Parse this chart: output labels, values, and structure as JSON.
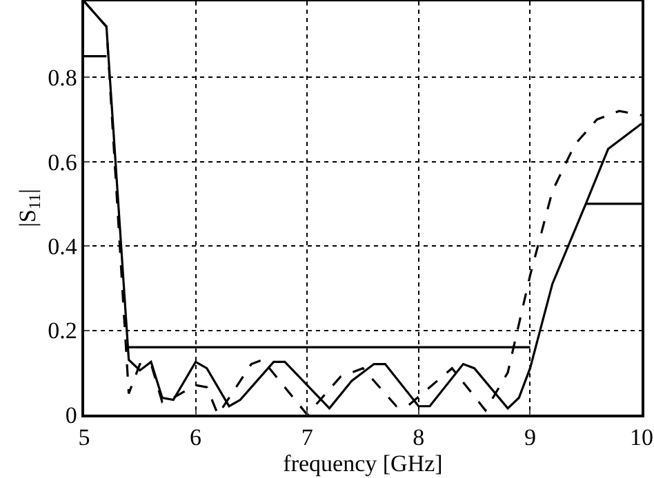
{
  "chart_data": {
    "type": "line",
    "xlabel": "frequency [GHz]",
    "ylabel": "|S$_{11}$|",
    "xlim": [
      5,
      10
    ],
    "ylim": [
      0,
      0.98
    ],
    "xticks": [
      5,
      6,
      7,
      8,
      9,
      10
    ],
    "yticks": [
      0,
      0.2,
      0.4,
      0.6,
      0.8
    ],
    "grid": true,
    "marker": "none",
    "series": [
      {
        "color": "#000000",
        "line_style": "solid",
        "x": [
          5,
          5.2,
          5.4,
          5.5,
          5.6,
          5.7,
          5.8,
          6.0,
          6.1,
          6.3,
          6.4,
          6.7,
          6.8,
          7.2,
          7.4,
          7.6,
          7.7,
          8.0,
          8.1,
          8.4,
          8.5,
          8.8,
          8.9,
          9.0,
          9.2,
          9.5,
          9.7,
          10
        ],
        "values": [
          0.98,
          0.92,
          0.13,
          0.105,
          0.125,
          0.04,
          0.035,
          0.125,
          0.11,
          0.02,
          0.035,
          0.125,
          0.125,
          0.015,
          0.08,
          0.12,
          0.12,
          0.02,
          0.02,
          0.12,
          0.11,
          0.015,
          0.04,
          0.11,
          0.31,
          0.5,
          0.63,
          0.69
        ]
      },
      {
        "color": "#000000",
        "line_style": "dashed",
        "x": [
          5,
          5.2,
          5.4,
          5.5,
          5.6,
          5.7,
          5.8,
          6.0,
          6.1,
          6.2,
          6.5,
          6.6,
          7.0,
          7.3,
          7.5,
          7.8,
          7.9,
          8.3,
          8.6,
          8.8,
          9.0,
          9.2,
          9.4,
          9.6,
          9.8,
          10
        ],
        "values": [
          0.98,
          0.92,
          0.05,
          0.12,
          0.12,
          0.03,
          0.04,
          0.07,
          0.065,
          0.0,
          0.12,
          0.13,
          0.0,
          0.09,
          0.11,
          0.02,
          0.02,
          0.11,
          0.01,
          0.1,
          0.33,
          0.53,
          0.64,
          0.7,
          0.72,
          0.71
        ]
      },
      {
        "color": "#000000",
        "line_style": "solid",
        "x": [
          5,
          5.2
        ],
        "values": [
          0.85,
          0.85
        ]
      },
      {
        "color": "#000000",
        "line_style": "solid",
        "x": [
          5.4,
          9
        ],
        "values": [
          0.16,
          0.16
        ]
      },
      {
        "color": "#000000",
        "line_style": "solid",
        "x": [
          9.5,
          10
        ],
        "values": [
          0.5,
          0.5
        ]
      }
    ]
  }
}
